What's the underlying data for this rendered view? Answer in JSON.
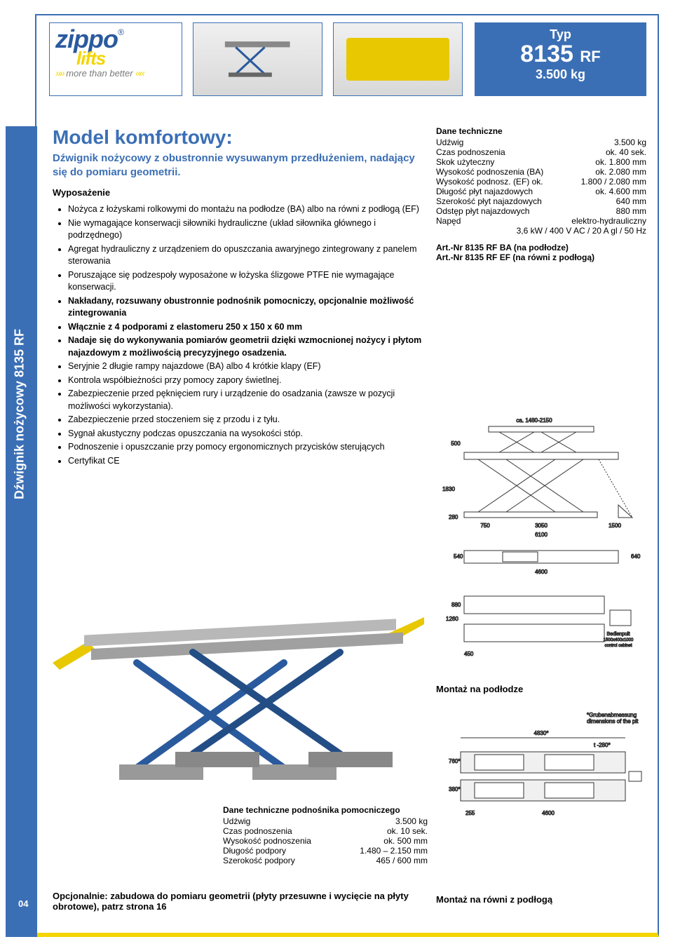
{
  "header": {
    "logo": {
      "line1": "zippo",
      "line2": "lifts",
      "tagline": "more than better",
      "registered": "®"
    },
    "type": {
      "label": "Typ",
      "model": "8135",
      "suffix": "RF",
      "weight": "3.500 kg"
    }
  },
  "sidebar": {
    "label": "Dźwignik nożycowy 8135 RF"
  },
  "main": {
    "title": "Model komfortowy:",
    "subtitle": "Dźwignik nożycowy z obustronnie wysuwanym przedłużeniem, nadający się do pomiaru geometrii.",
    "equipment_head": "Wyposażenie",
    "features": [
      {
        "text": "Nożyca z łożyskami rolkowymi do montażu na podłodze (BA) albo na równi z podłogą (EF)",
        "bold": false
      },
      {
        "text": "Nie wymagające konserwacji siłowniki hydrauliczne (układ siłownika głównego i podrzędnego)",
        "bold": false
      },
      {
        "text": "Agregat hydrauliczny z urządzeniem do opuszczania awaryjnego zintegrowany z panelem sterowania",
        "bold": false
      },
      {
        "text": "Poruszające się podzespoły wyposażone w łożyska ślizgowe PTFE nie wymagające konserwacji.",
        "bold": false
      },
      {
        "text": "Nakładany, rozsuwany obustronnie podnośnik pomocniczy, opcjonalnie możliwość zintegrowania",
        "bold": true
      },
      {
        "text": "Włącznie z 4 podporami z elastomeru 250 x 150 x 60 mm",
        "bold": true
      },
      {
        "text": "Nadaje się do wykonywania pomiarów geometrii dzięki wzmocnionej nożycy i płytom najazdowym z możliwością precyzyjnego osadzenia.",
        "bold": true
      },
      {
        "text": "Seryjnie 2 długie rampy najazdowe (BA) albo 4 krótkie klapy (EF)",
        "bold": false
      },
      {
        "text": "Kontrola współbieżności przy pomocy zapory świetlnej.",
        "bold": false
      },
      {
        "text": "Zabezpieczenie przed pęknięciem rury i urządzenie do osadzania (zawsze w pozycji możliwości wykorzystania).",
        "bold": false
      },
      {
        "text": "Zabezpieczenie przed stoczeniem się z przodu i z tyłu.",
        "bold": false
      },
      {
        "text": "Sygnał akustyczny podczas opuszczania na wysokości stóp.",
        "bold": false
      },
      {
        "text": "Podnoszenie i opuszczanie przy pomocy ergonomicznych przycisków sterujących",
        "bold": false
      },
      {
        "text": "Certyfikat CE",
        "bold": false
      }
    ]
  },
  "specs": {
    "head": "Dane techniczne",
    "rows": [
      {
        "label": "Udźwig",
        "value": "3.500 kg"
      },
      {
        "label": "Czas podnoszenia",
        "value": "ok. 40 sek."
      },
      {
        "label": "Skok użyteczny",
        "value": "ok. 1.800 mm"
      },
      {
        "label": "Wysokość podnoszenia (BA)",
        "value": "ok. 2.080 mm"
      },
      {
        "label": "Wysokość podnosz. (EF) ok.",
        "value": "1.800 / 2.080 mm"
      },
      {
        "label": "Długość płyt najazdowych",
        "value": "ok. 4.600 mm"
      },
      {
        "label": "Szerokość płyt najazdowych",
        "value": "640 mm"
      },
      {
        "label": "Odstęp płyt najazdowych",
        "value": "880 mm"
      },
      {
        "label": "Napęd",
        "value": "elektro-hydrauliczny"
      },
      {
        "label": "",
        "value": "3,6 kW / 400 V AC / 20 A gl / 50 Hz"
      }
    ],
    "art1": "Art.-Nr 8135 RF BA (na podłodze)",
    "art2": "Art.-Nr 8135 RF EF (na równi z podłogą)"
  },
  "diagrams": {
    "caption1": "Montaż na podłodze",
    "caption2": "Montaż na równi z podłogą",
    "dims": {
      "width_top": "ca. 1480-2150",
      "height_lift": "500",
      "height_total": "1830",
      "pit1": "750",
      "base": "3050",
      "ramp": "1500",
      "total_len": "6100",
      "deck": "280",
      "plan_len": "4600",
      "plan_w1": "640",
      "plan_gap": "880",
      "plan_w2": "640",
      "side_h": "1260",
      "side_w": "450",
      "control": "Bedienpult 1500x400x1000 control cabinet",
      "floor_total": "4830",
      "floor_pit": "280",
      "floor_h1": "760",
      "floor_h2": "380",
      "floor_side": "255",
      "floor_len": "4600",
      "pit_note": "*Grubenabmessung dimensions of the pit"
    }
  },
  "bottom_specs": {
    "head": "Dane techniczne podnośnika pomocniczego",
    "rows": [
      {
        "label": "Udźwig",
        "value": "3.500 kg"
      },
      {
        "label": "Czas podnoszenia",
        "value": "ok. 10 sek."
      },
      {
        "label": "Wysokość podnoszenia",
        "value": "ok. 500 mm"
      },
      {
        "label": "Długość podpory",
        "value": "1.480 – 2.150 mm"
      },
      {
        "label": "Szerokość podpory",
        "value": "465 / 600 mm"
      }
    ]
  },
  "optional": "Opcjonalnie: zabudowa do pomiaru geometrii (płyty przesuwne i wycięcie na płyty obrotowe), patrz strona 16",
  "page_number": "04",
  "colors": {
    "brand_blue": "#3b6fb5",
    "brand_yellow": "#f4d500",
    "dark_blue": "#2a5a9e",
    "gray": "#7a7a7a"
  }
}
